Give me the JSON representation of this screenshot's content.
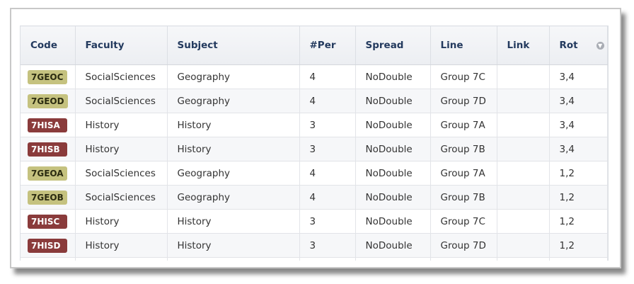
{
  "colors": {
    "geo_badge": "#c5c27f",
    "geo_text": "#2b2b10",
    "his_badge": "#8a3b3b",
    "his_text": "#ffffff",
    "partial_badge": "#e040e0"
  },
  "headers": [
    "Code",
    "Faculty",
    "Subject",
    "#Per",
    "Spread",
    "Line",
    "Link",
    "Rot"
  ],
  "sort_icon": "chevron-down-circle-icon",
  "rows": [
    {
      "code": "7GEOC",
      "type": "geo",
      "faculty": "SocialSciences",
      "subject": "Geography",
      "per": "4",
      "spread": "NoDouble",
      "line": "Group 7C",
      "link": "",
      "rot": "3,4"
    },
    {
      "code": "7GEOD",
      "type": "geo",
      "faculty": "SocialSciences",
      "subject": "Geography",
      "per": "4",
      "spread": "NoDouble",
      "line": "Group 7D",
      "link": "",
      "rot": "3,4"
    },
    {
      "code": "7HISA",
      "type": "his",
      "faculty": "History",
      "subject": "History",
      "per": "3",
      "spread": "NoDouble",
      "line": "Group 7A",
      "link": "",
      "rot": "3,4"
    },
    {
      "code": "7HISB",
      "type": "his",
      "faculty": "History",
      "subject": "History",
      "per": "3",
      "spread": "NoDouble",
      "line": "Group 7B",
      "link": "",
      "rot": "3,4"
    },
    {
      "code": "7GEOA",
      "type": "geo",
      "faculty": "SocialSciences",
      "subject": "Geography",
      "per": "4",
      "spread": "NoDouble",
      "line": "Group 7A",
      "link": "",
      "rot": "1,2"
    },
    {
      "code": "7GEOB",
      "type": "geo",
      "faculty": "SocialSciences",
      "subject": "Geography",
      "per": "4",
      "spread": "NoDouble",
      "line": "Group 7B",
      "link": "",
      "rot": "1,2"
    },
    {
      "code": "7HISC",
      "type": "his",
      "faculty": "History",
      "subject": "History",
      "per": "3",
      "spread": "NoDouble",
      "line": "Group 7C",
      "link": "",
      "rot": "1,2"
    },
    {
      "code": "7HISD",
      "type": "his",
      "faculty": "History",
      "subject": "History",
      "per": "3",
      "spread": "NoDouble",
      "line": "Group 7D",
      "link": "",
      "rot": "1,2"
    }
  ]
}
